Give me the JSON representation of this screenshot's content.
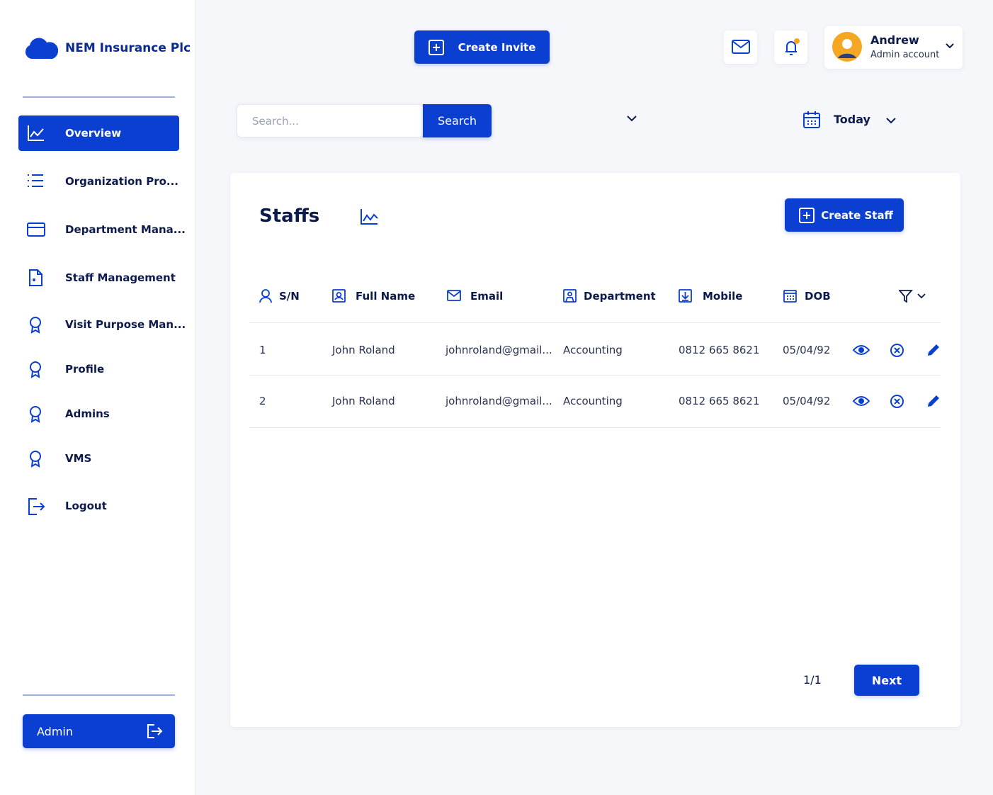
{
  "sidebar": {
    "brand": "NEM Insurance Plc",
    "nav": [
      "Overview",
      "Organization Pro...",
      "Department Mana...",
      "Staff Management",
      "Visit Purpose Man...",
      "Profile",
      "Admins",
      "VMS",
      "Logout"
    ],
    "footer_button": "Admin"
  },
  "header": {
    "create_invite": "Create Invite",
    "user_name": "Andrew",
    "user_role": "Admin account"
  },
  "filters": {
    "search_placeholder": "Search...",
    "search_button": "Search",
    "date": "Today"
  },
  "panel": {
    "title": "Staffs",
    "create_button": "Create Staff"
  },
  "table": {
    "columns": [
      "S/N",
      "Full Name",
      "Email",
      "Department",
      "Mobile",
      "DOB"
    ],
    "rows": [
      [
        1,
        "John Roland",
        "johnroland@gmail...",
        "Accounting",
        "0812 665 8621",
        "05/04/92"
      ],
      [
        2,
        "John Roland",
        "johnroland@gmail...",
        "Accounting",
        "0812 665 8621",
        "05/04/92"
      ]
    ]
  },
  "pagination": {
    "page": "1/1",
    "next": "Next"
  }
}
